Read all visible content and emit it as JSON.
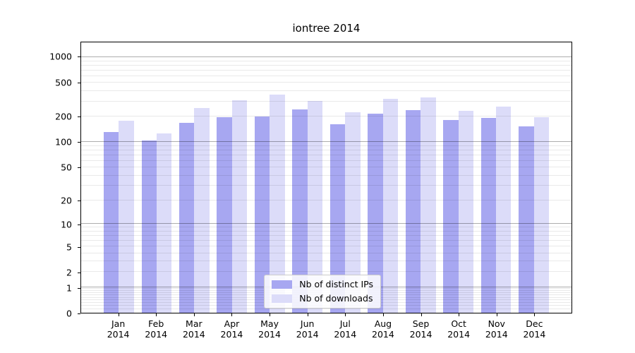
{
  "chart_data": {
    "type": "bar",
    "title": "iontree 2014",
    "months": [
      "Jan",
      "Feb",
      "Mar",
      "Apr",
      "May",
      "Jun",
      "Jul",
      "Aug",
      "Sep",
      "Oct",
      "Nov",
      "Dec"
    ],
    "year_label": "2014",
    "categories": [
      "Jan 2014",
      "Feb 2014",
      "Mar 2014",
      "Apr 2014",
      "May 2014",
      "Jun 2014",
      "Jul 2014",
      "Aug 2014",
      "Sep 2014",
      "Oct 2014",
      "Nov 2014",
      "Dec 2014"
    ],
    "series": [
      {
        "name": "Nb of distinct IPs",
        "color": "#a7a7f1",
        "values": [
          131,
          105,
          169,
          199,
          202,
          243,
          164,
          218,
          240,
          183,
          195,
          154
        ]
      },
      {
        "name": "Nb of downloads",
        "color": "#dcdcf9",
        "values": [
          178,
          127,
          253,
          313,
          362,
          309,
          227,
          326,
          337,
          236,
          265,
          196
        ]
      }
    ],
    "xlabel": "",
    "ylabel": "",
    "yscale": "log1p",
    "ylim": [
      0,
      1500
    ],
    "yticks": [
      0,
      1,
      2,
      5,
      10,
      20,
      50,
      100,
      200,
      500,
      1000
    ],
    "grid": "horizontal major+minor",
    "legend": {
      "position": "lower center",
      "labels": [
        "Nb of distinct IPs",
        "Nb of downloads"
      ]
    },
    "colors": {
      "bar_distinct_ips": "#a7a7f1",
      "bar_downloads": "#dcdcf9",
      "grid_minor": "#e9e9e9",
      "grid_major": "#aeaeae",
      "axis": "#000000",
      "legend_border": "#cccccc",
      "background": "#ffffff"
    }
  }
}
